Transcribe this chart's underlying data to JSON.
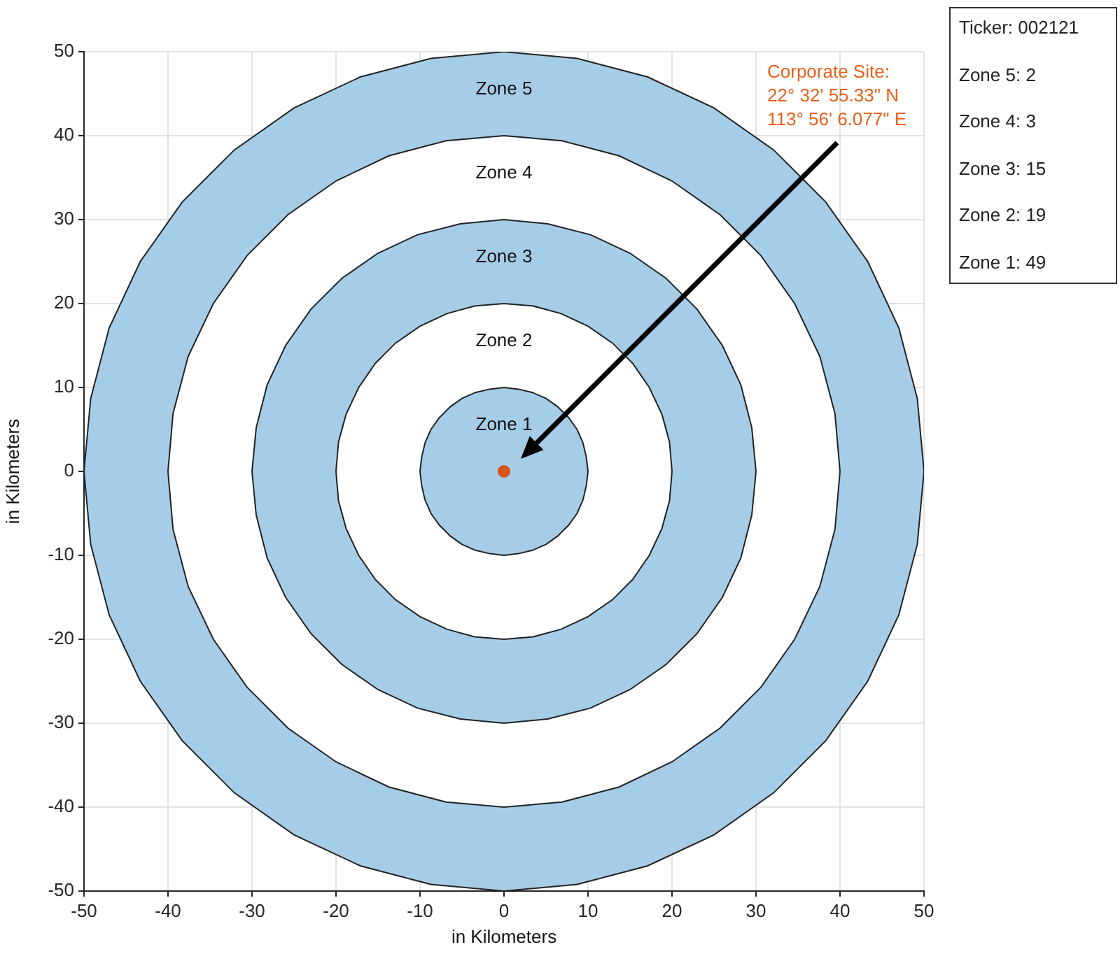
{
  "chart_data": {
    "type": "area",
    "xlabel": "in Kilometers",
    "ylabel": "in Kilometers",
    "xlim": [
      -50,
      50
    ],
    "ylim": [
      -50,
      50
    ],
    "xticks": [
      -50,
      -40,
      -30,
      -20,
      -10,
      0,
      10,
      20,
      30,
      40,
      50
    ],
    "yticks": [
      -50,
      -40,
      -30,
      -20,
      -10,
      0,
      10,
      20,
      30,
      40,
      50
    ],
    "grid": true,
    "legend": false,
    "series": [
      {
        "color": "#a6cde8",
        "x": [
          50,
          49.2,
          47,
          43.3,
          38.3,
          32.1,
          25,
          17.1,
          8.7,
          0,
          -8.7,
          -17.1,
          -25,
          -32.1,
          -38.3,
          -43.3,
          -47,
          -49.2,
          -50,
          -49.2,
          -47,
          -43.3,
          -38.3,
          -32.1,
          -25,
          -17.1,
          -8.7,
          0,
          8.7,
          17.1,
          25,
          32.1,
          38.3,
          43.3,
          47,
          49.2,
          50
        ],
        "values": [
          0,
          8.7,
          17.1,
          25,
          32.1,
          38.3,
          43.3,
          47,
          49.2,
          50,
          49.2,
          47,
          43.3,
          38.3,
          32.1,
          25,
          17.1,
          8.7,
          0,
          -8.7,
          -17.1,
          -25,
          -32.1,
          -38.3,
          -43.3,
          -47,
          -49.2,
          -50,
          -49.2,
          -47,
          -43.3,
          -38.3,
          -32.1,
          -25,
          -17.1,
          -8.7,
          0
        ]
      },
      {
        "color": "#ffffff",
        "x": [
          40,
          39.4,
          37.6,
          34.6,
          30.6,
          25.7,
          20,
          13.7,
          6.9,
          0,
          -6.9,
          -13.7,
          -20,
          -25.7,
          -30.6,
          -34.6,
          -37.6,
          -39.4,
          -40,
          -39.4,
          -37.6,
          -34.6,
          -30.6,
          -25.7,
          -20,
          -13.7,
          -6.9,
          0,
          6.9,
          13.7,
          20,
          25.7,
          30.6,
          34.6,
          37.6,
          39.4,
          40
        ],
        "values": [
          0,
          6.9,
          13.7,
          20,
          25.7,
          30.6,
          34.6,
          37.6,
          39.4,
          40,
          39.4,
          37.6,
          34.6,
          30.6,
          25.7,
          20,
          13.7,
          6.9,
          0,
          -6.9,
          -13.7,
          -20,
          -25.7,
          -30.6,
          -34.6,
          -37.6,
          -39.4,
          -40,
          -39.4,
          -37.6,
          -34.6,
          -30.6,
          -25.7,
          -20,
          -13.7,
          -6.9,
          0
        ]
      },
      {
        "color": "#a6cde8",
        "x": [
          30,
          29.5,
          28.2,
          26,
          23,
          19.3,
          15,
          10.3,
          5.2,
          0,
          -5.2,
          -10.3,
          -15,
          -19.3,
          -23,
          -26,
          -28.2,
          -29.5,
          -30,
          -29.5,
          -28.2,
          -26,
          -23,
          -19.3,
          -15,
          -10.3,
          -5.2,
          0,
          5.2,
          10.3,
          15,
          19.3,
          23,
          26,
          28.2,
          29.5,
          30
        ],
        "values": [
          0,
          5.2,
          10.3,
          15,
          19.3,
          23,
          26,
          28.2,
          29.5,
          30,
          29.5,
          28.2,
          26,
          23,
          19.3,
          15,
          10.3,
          5.2,
          0,
          -5.2,
          -10.3,
          -15,
          -19.3,
          -23,
          -26,
          -28.2,
          -29.5,
          -30,
          -29.5,
          -28.2,
          -26,
          -23,
          -19.3,
          -15,
          -10.3,
          -5.2,
          0
        ]
      },
      {
        "color": "#ffffff",
        "x": [
          20,
          19.7,
          18.8,
          17.3,
          15.3,
          12.9,
          10,
          6.8,
          3.5,
          0,
          -3.5,
          -6.8,
          -10,
          -12.9,
          -15.3,
          -17.3,
          -18.8,
          -19.7,
          -20,
          -19.7,
          -18.8,
          -17.3,
          -15.3,
          -12.9,
          -10,
          -6.8,
          -3.5,
          0,
          3.5,
          6.8,
          10,
          12.9,
          15.3,
          17.3,
          18.8,
          19.7,
          20
        ],
        "values": [
          0,
          3.5,
          6.8,
          10,
          12.9,
          15.3,
          17.3,
          18.8,
          19.7,
          20,
          19.7,
          18.8,
          17.3,
          15.3,
          12.9,
          10,
          6.8,
          3.5,
          0,
          -3.5,
          -6.8,
          -10,
          -12.9,
          -15.3,
          -17.3,
          -18.8,
          -19.7,
          -20,
          -19.7,
          -18.8,
          -17.3,
          -15.3,
          -12.9,
          -10,
          -6.8,
          -3.5,
          0
        ]
      },
      {
        "color": "#a6cde8",
        "x": [
          10,
          9.8,
          9.4,
          8.7,
          7.7,
          6.4,
          5,
          3.4,
          1.7,
          0,
          -1.7,
          -3.4,
          -5,
          -6.4,
          -7.7,
          -8.7,
          -9.4,
          -9.8,
          -10,
          -9.8,
          -9.4,
          -8.7,
          -7.7,
          -6.4,
          -5,
          -3.4,
          -1.7,
          0,
          1.7,
          3.4,
          5,
          6.4,
          7.7,
          8.7,
          9.4,
          9.8,
          10
        ],
        "values": [
          0,
          1.7,
          3.4,
          5,
          6.4,
          7.7,
          8.7,
          9.4,
          9.8,
          10,
          9.8,
          9.4,
          8.7,
          7.7,
          6.4,
          5,
          3.4,
          1.7,
          0,
          -1.7,
          -3.4,
          -5,
          -6.4,
          -7.7,
          -8.7,
          -9.4,
          -9.8,
          -10,
          -9.8,
          -9.4,
          -8.7,
          -7.7,
          -6.4,
          -5,
          -3.4,
          -1.7,
          0
        ]
      },
      {
        "type": "scatter",
        "color": "#d95319",
        "marker": "circle",
        "x": [
          0
        ],
        "values": [
          0
        ]
      }
    ],
    "annotations": [
      "Corporate Site:\n22° 32' 55.33\" N\n113° 56' 6.077\" E",
      "Zone 5",
      "Zone 4",
      "Zone 3",
      "Zone 2",
      "Zone 1",
      "Ticker: 002121",
      "Zone 5: 2",
      "Zone 4: 3",
      "Zone 3: 15",
      "Zone 2: 19",
      "Zone 1: 49"
    ]
  }
}
